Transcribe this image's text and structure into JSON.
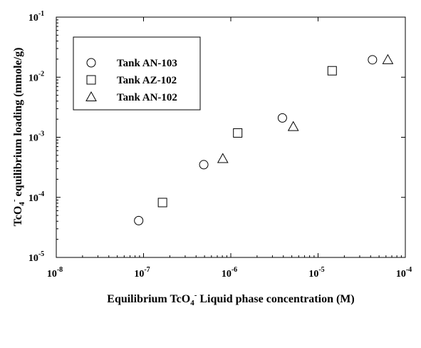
{
  "chart_data": {
    "type": "scatter",
    "xscale": "log",
    "yscale": "log",
    "xlim": [
      1e-08,
      0.0001
    ],
    "ylim": [
      1e-05,
      0.1
    ],
    "x_ticks": [
      {
        "value": 1e-08,
        "base": "10",
        "exp": "-8"
      },
      {
        "value": 1e-07,
        "base": "10",
        "exp": "-7"
      },
      {
        "value": 1e-06,
        "base": "10",
        "exp": "-6"
      },
      {
        "value": 1e-05,
        "base": "10",
        "exp": "-5"
      },
      {
        "value": 0.0001,
        "base": "10",
        "exp": "-4"
      }
    ],
    "y_ticks": [
      {
        "value": 1e-05,
        "base": "10",
        "exp": "-5"
      },
      {
        "value": 0.0001,
        "base": "10",
        "exp": "-4"
      },
      {
        "value": 0.001,
        "base": "10",
        "exp": "-3"
      },
      {
        "value": 0.01,
        "base": "10",
        "exp": "-2"
      },
      {
        "value": 0.1,
        "base": "10",
        "exp": "-1"
      }
    ],
    "xlabel": {
      "pre": "Equilibrium TcO",
      "sub": "4",
      "sup": "-",
      "post": " Liquid phase concentration (M)"
    },
    "ylabel": {
      "pre": "TcO",
      "sub": "4",
      "sup": "-",
      "post": " equilibrium loading (mmole/g)"
    },
    "legend_position": "top-left",
    "grid": false,
    "series": [
      {
        "name": "Tank AN-103",
        "marker": "circle",
        "points": [
          {
            "x": 8.8e-08,
            "y": 4.1e-05
          },
          {
            "x": 4.9e-07,
            "y": 0.00035
          },
          {
            "x": 3.9e-06,
            "y": 0.0021
          },
          {
            "x": 4.2e-05,
            "y": 0.0195
          }
        ]
      },
      {
        "name": "Tank AZ-102",
        "marker": "square",
        "points": [
          {
            "x": 1.65e-07,
            "y": 8.2e-05
          },
          {
            "x": 1.2e-06,
            "y": 0.00118
          },
          {
            "x": 1.45e-05,
            "y": 0.0128
          }
        ]
      },
      {
        "name": "Tank AN-102",
        "marker": "triangle",
        "points": [
          {
            "x": 8.1e-07,
            "y": 0.00044
          },
          {
            "x": 5.2e-06,
            "y": 0.0015
          },
          {
            "x": 6.3e-05,
            "y": 0.0195
          }
        ]
      }
    ]
  }
}
